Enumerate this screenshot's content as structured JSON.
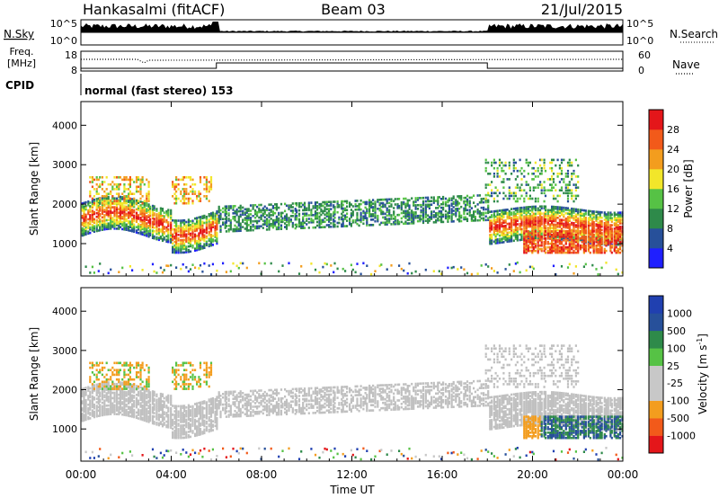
{
  "header": {
    "station": "Hankasalmi (fitACF)",
    "beam": "Beam 03",
    "date": "21/Jul/2015"
  },
  "noise_panel": {
    "left_label": "N.Sky",
    "left_ticks": [
      "10^5",
      "10^0"
    ],
    "right_label": "N.Search",
    "right_ticks": [
      "10^5",
      "10^0"
    ]
  },
  "freq_panel": {
    "left_label_1": "Freq.",
    "left_label_2": "[MHz]",
    "left_ticks": [
      "18",
      "8"
    ],
    "right_label": "Nave",
    "right_ticks": [
      "60",
      "0"
    ]
  },
  "cpid": {
    "label": "CPID",
    "value": "normal (fast stereo) 153"
  },
  "x_axis": {
    "label": "Time UT",
    "ticks": [
      "00:00",
      "04:00",
      "08:00",
      "12:00",
      "16:00",
      "20:00",
      "00:00"
    ]
  },
  "power_panel": {
    "ylabel": "Slant Range [km]",
    "yticks": [
      "1000",
      "2000",
      "3000",
      "4000"
    ],
    "colorbar_label": "Power [dB]",
    "colorbar_ticks": [
      "4",
      "8",
      "12",
      "16",
      "20",
      "24",
      "28"
    ]
  },
  "velocity_panel": {
    "ylabel": "Slant Range [km]",
    "yticks": [
      "1000",
      "2000",
      "3000",
      "4000"
    ],
    "colorbar_label": "Velocity [m s",
    "colorbar_unit_sup": "-1",
    "colorbar_unit_close": "]",
    "colorbar_ticks": [
      "-1000",
      "-500",
      "-100",
      "-25",
      "25",
      "100",
      "500",
      "1000"
    ]
  },
  "colors": {
    "power_scale": [
      "#1f1fff",
      "#27509a",
      "#2e8a4a",
      "#56c245",
      "#f2e62a",
      "#f39d1e",
      "#f25a1a",
      "#e4161a"
    ],
    "velocity_scale": [
      "#e4161a",
      "#f25a1a",
      "#f39d1e",
      "#c8c8c8",
      "#c8c8c8",
      "#56c245",
      "#2e8a4a",
      "#27509a",
      "#2040b0"
    ],
    "ground_scatter": "#c0c0c0"
  },
  "chart_data": [
    {
      "type": "heatmap",
      "title": "Hankasalmi (fitACF) Beam 03 21/Jul/2015",
      "xlabel": "Time UT",
      "ylabel": "Slant Range [km]",
      "xlim": [
        "00:00",
        "24:00"
      ],
      "ylim": [
        180,
        4600
      ],
      "colorbar": "Power [dB]",
      "zlim": [
        0,
        30
      ],
      "bands": [
        {
          "t0": 0.0,
          "t1": 6.0,
          "r0": 1200,
          "r1": 2100,
          "center": 1650,
          "level": "high"
        },
        {
          "t0": 0.3,
          "t1": 3.0,
          "r0": 1950,
          "r1": 2500,
          "level": "medium"
        },
        {
          "t0": 4.0,
          "t1": 5.8,
          "r0": 2000,
          "r1": 2800,
          "level": "medium"
        },
        {
          "t0": 6.0,
          "t1": 10.5,
          "r0": 1250,
          "r1": 2200,
          "level": "low"
        },
        {
          "t0": 10.5,
          "t1": 14.5,
          "r0": 1600,
          "r1": 2150,
          "level": "low"
        },
        {
          "t0": 14.5,
          "t1": 18.0,
          "r0": 1500,
          "r1": 2200,
          "level": "medium"
        },
        {
          "t0": 17.7,
          "t1": 24.0,
          "r0": 1200,
          "r1": 2200,
          "center": 1600,
          "level": "high"
        },
        {
          "t0": 20.0,
          "t1": 24.0,
          "r0": 800,
          "r1": 1300,
          "level": "high"
        }
      ]
    },
    {
      "type": "heatmap",
      "xlabel": "Time UT",
      "ylabel": "Slant Range [km]",
      "xlim": [
        "00:00",
        "24:00"
      ],
      "ylim": [
        180,
        4600
      ],
      "colorbar": "Velocity [m s-1]",
      "zlim": [
        -1000,
        1000
      ],
      "bands": [
        {
          "t0": 0.0,
          "t1": 24.0,
          "r0": 1300,
          "r1": 2100,
          "velocity": "ground scatter"
        },
        {
          "t0": 0.3,
          "t1": 3.0,
          "r0": 2100,
          "r1": 2700,
          "velocity": -300
        },
        {
          "t0": 4.0,
          "t1": 5.8,
          "r0": 2200,
          "r1": 2800,
          "velocity": -300
        },
        {
          "t0": 20.3,
          "t1": 24.0,
          "r0": 900,
          "r1": 1400,
          "velocity": 800
        },
        {
          "t0": 19.5,
          "t1": 20.5,
          "r0": 700,
          "r1": 900,
          "velocity": -400
        }
      ]
    }
  ]
}
